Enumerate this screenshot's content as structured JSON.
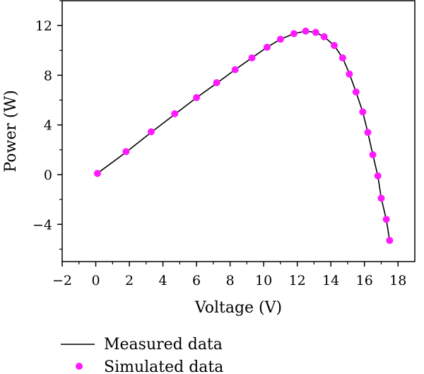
{
  "chart_data": {
    "type": "line",
    "title": "",
    "xlabel": "Voltage (V)",
    "ylabel": "Power (W)",
    "xlim": [
      -2,
      19
    ],
    "ylim": [
      -7,
      14
    ],
    "xticks": [
      -2,
      0,
      2,
      4,
      6,
      8,
      10,
      12,
      14,
      16,
      18
    ],
    "yticks": [
      -4,
      0,
      4,
      8,
      12
    ],
    "xtick_labels": [
      "−2",
      "0",
      "2",
      "4",
      "6",
      "8",
      "10",
      "12",
      "14",
      "16",
      "18"
    ],
    "ytick_labels": [
      "−4",
      "0",
      "4",
      "8",
      "12"
    ],
    "grid": false,
    "legend_position": "bottom",
    "series": [
      {
        "name": "Measured data",
        "style": "line",
        "color": "#000000",
        "x": [
          0.1,
          1.8,
          3.3,
          4.7,
          6.0,
          7.2,
          8.3,
          9.3,
          10.2,
          11.0,
          11.8,
          12.5,
          13.1,
          13.6,
          14.2,
          14.7,
          15.1,
          15.5,
          15.9,
          16.2,
          16.5,
          16.8,
          17.0,
          17.3,
          17.5
        ],
        "y": [
          0.1,
          1.8,
          3.4,
          4.85,
          6.2,
          7.35,
          8.45,
          9.4,
          10.25,
          10.9,
          11.35,
          11.55,
          11.45,
          11.1,
          10.4,
          9.4,
          8.15,
          6.65,
          5.05,
          3.4,
          1.6,
          -0.1,
          -1.9,
          -3.6,
          -5.3
        ]
      },
      {
        "name": "Simulated data",
        "style": "scatter",
        "color": "#ff1aff",
        "x": [
          0.1,
          1.8,
          3.3,
          4.7,
          6.0,
          7.2,
          8.3,
          9.3,
          10.2,
          11.0,
          11.8,
          12.5,
          13.1,
          13.6,
          14.2,
          14.7,
          15.1,
          15.5,
          15.9,
          16.2,
          16.5,
          16.8,
          17.0,
          17.3,
          17.5
        ],
        "y": [
          0.1,
          1.85,
          3.45,
          4.9,
          6.2,
          7.4,
          8.45,
          9.4,
          10.25,
          10.9,
          11.35,
          11.55,
          11.45,
          11.1,
          10.4,
          9.4,
          8.1,
          6.65,
          5.05,
          3.4,
          1.6,
          -0.1,
          -1.9,
          -3.6,
          -5.3
        ]
      }
    ]
  }
}
